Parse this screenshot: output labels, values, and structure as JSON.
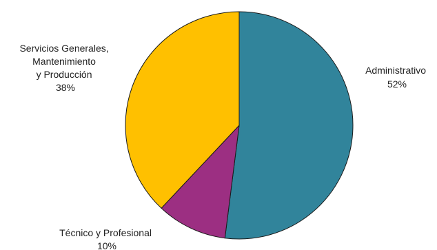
{
  "chart_data": {
    "type": "pie",
    "slices": [
      {
        "label": [
          "Administrativo"
        ],
        "percent_label": "52%",
        "value": 52,
        "color": "#31849B"
      },
      {
        "label": [
          "Técnico y Profesional"
        ],
        "percent_label": "10%",
        "value": 10,
        "color": "#9C2F82"
      },
      {
        "label": [
          "Servicios Generales,",
          "Mantenimiento",
          "y Producción"
        ],
        "percent_label": "38%",
        "value": 38,
        "color": "#FFC000"
      }
    ],
    "start": "12 o'clock",
    "direction": "clockwise",
    "legend": "none"
  }
}
